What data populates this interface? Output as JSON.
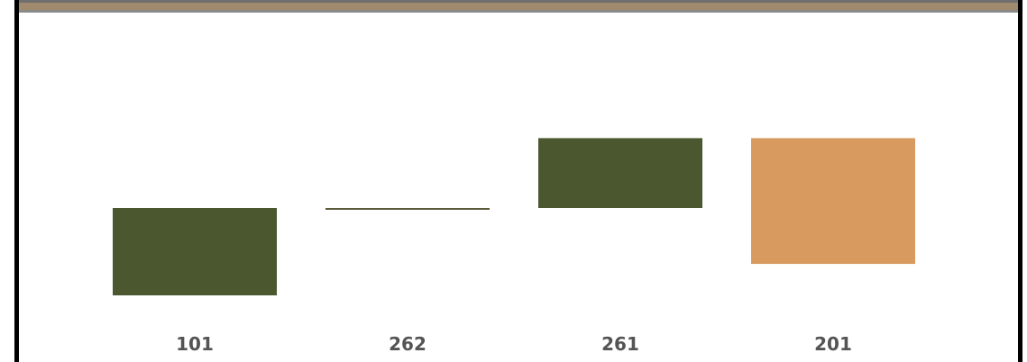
{
  "colors": {
    "positive": "#4a572f",
    "negative": "#d99a5f",
    "header_band": "#a08a6d",
    "header_stripe": "#6f6f6f"
  },
  "chart_data": {
    "type": "waterfall",
    "categories": [
      "101",
      "262",
      "261",
      "201"
    ],
    "steps": [
      {
        "category": "101",
        "start": 0,
        "end": 100,
        "kind": "increase"
      },
      {
        "category": "262",
        "start": 100,
        "end": 100,
        "kind": "flat"
      },
      {
        "category": "261",
        "start": 100,
        "end": 180,
        "kind": "increase"
      },
      {
        "category": "201",
        "start": 180,
        "end": 36,
        "kind": "decrease"
      }
    ],
    "ylim": [
      0,
      250
    ],
    "grid": false,
    "legend": "none"
  }
}
